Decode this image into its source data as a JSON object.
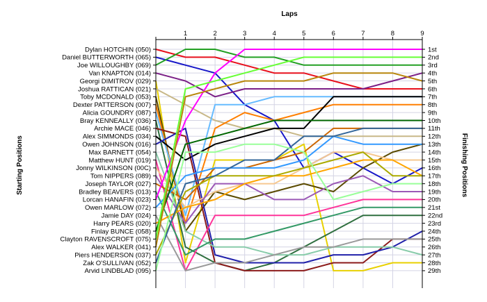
{
  "chart_data": {
    "type": "line",
    "title": "",
    "xlabel": "Laps",
    "ylabel_left": "Starting Positions",
    "ylabel_right": "Finishing Positions",
    "x": [
      0,
      1,
      2,
      3,
      4,
      5,
      6,
      7,
      8,
      9
    ],
    "x_tick_labels": [
      "1",
      "2",
      "3",
      "4",
      "5",
      "6",
      "7",
      "8",
      "9"
    ],
    "y_range": [
      1,
      29
    ],
    "grid": true,
    "left_labels": [
      "Dylan HOTCHIN (050)",
      "Daniel BUTTERWORTH (065)",
      "Joe WILLOUGHBY (069)",
      "Van KNAPTON (014)",
      "Georgi DIMITROV (029)",
      "Joshua RATTICAN (021)",
      "Toby MCDONALD (053)",
      "Dexter PATTERSON (007)",
      "Alicia GOUNDRY (087)",
      "Bray KENNEALLY (036)",
      "Archie MACE (046)",
      "Alex SIMMONDS (034)",
      "Owen JOHNSON (016)",
      "Max BARNETT (054)",
      "Matthew HUNT (019)",
      "Jonny WILKINSON (00C)",
      "Tom NIPPERS (089)",
      "Joseph TAYLOR (027)",
      "Bradley BEAVERS (013)",
      "Lorcan HANAFIN (023)",
      "Owen MARLOW (072)",
      "Jamie DAY (024)",
      "Harry PEARS (020)",
      "Finlay BUNCE (058)",
      "Clayton RAVENSCROFT (075)",
      "Alex WALKER (041)",
      "Piers HENDERSON (037)",
      "Zak O'SULLIVAN (052)",
      "Arvid LINDBLAD (095)"
    ],
    "right_labels": [
      "1st",
      "2nd",
      "3rd",
      "4th",
      "5th",
      "6th",
      "7th",
      "8th",
      "9th",
      "10th",
      "11th",
      "12th",
      "13th",
      "14th",
      "15th",
      "16th",
      "17th",
      "18th",
      "19th",
      "20th",
      "21st",
      "22nd",
      "23rd",
      "24th",
      "25th",
      "26th",
      "27th",
      "28th",
      "29th"
    ],
    "series": [
      {
        "color": "#e8101c",
        "values": [
          1,
          2,
          2,
          3,
          4,
          4,
          5,
          6,
          6,
          6
        ]
      },
      {
        "color": "#1717c8",
        "values": [
          2,
          3,
          4,
          8,
          10,
          16,
          14,
          16,
          18,
          16
        ]
      },
      {
        "color": "#23a023",
        "values": [
          3,
          1,
          1,
          2,
          2,
          3,
          3,
          3,
          3,
          3
        ]
      },
      {
        "color": "#7b1f86",
        "values": [
          4,
          5,
          7,
          6,
          6,
          6,
          6,
          6,
          5,
          4
        ]
      },
      {
        "color": "#e8d000",
        "values": [
          5,
          28,
          15,
          15,
          15,
          13,
          29,
          29,
          28,
          28
        ]
      },
      {
        "color": "#c8b888",
        "values": [
          6,
          8,
          10,
          11,
          11,
          12,
          12,
          12,
          12,
          12
        ]
      },
      {
        "color": "#5a4a00",
        "values": [
          7,
          24,
          19,
          20,
          19,
          18,
          19,
          16,
          14,
          13
        ]
      },
      {
        "color": "#ff7f00",
        "values": [
          8,
          23,
          11,
          9,
          10,
          9,
          8,
          8,
          8,
          8
        ]
      },
      {
        "color": "#66bbff",
        "values": [
          9,
          22,
          8,
          8,
          7,
          7,
          7,
          7,
          7,
          7
        ]
      },
      {
        "color": "#2f6f3f",
        "values": [
          10,
          26,
          28,
          29,
          28,
          26,
          24,
          22,
          22,
          22
        ]
      },
      {
        "color": "#8b1a1a",
        "values": [
          11,
          12,
          28,
          29,
          29,
          29,
          28,
          28,
          25,
          25
        ]
      },
      {
        "color": "#000000",
        "values": [
          12,
          15,
          13,
          12,
          11,
          11,
          7,
          7,
          7,
          7
        ]
      },
      {
        "color": "#2020aa",
        "values": [
          13,
          11,
          27,
          28,
          28,
          28,
          27,
          27,
          26,
          24
        ]
      },
      {
        "color": "#88ccaa",
        "values": [
          14,
          24,
          26,
          26,
          27,
          27,
          26,
          26,
          26,
          27
        ]
      },
      {
        "color": "#ff3399",
        "values": [
          15,
          29,
          22,
          22,
          22,
          22,
          21,
          20,
          20,
          20
        ]
      },
      {
        "color": "#f6c890",
        "values": [
          16,
          21,
          19,
          18,
          18,
          16,
          14,
          14,
          15,
          15
        ]
      },
      {
        "color": "#9b59b6",
        "values": [
          17,
          23,
          18,
          18,
          20,
          20,
          18,
          17,
          19,
          19
        ]
      },
      {
        "color": "#cc6600",
        "values": [
          18,
          20,
          16,
          16,
          15,
          14,
          11,
          11,
          11,
          11
        ]
      },
      {
        "color": "#339966",
        "values": [
          19,
          27,
          25,
          25,
          24,
          23,
          22,
          21,
          21,
          21
        ]
      },
      {
        "color": "#ff00ff",
        "values": [
          20,
          10,
          4,
          1,
          1,
          1,
          1,
          1,
          1,
          1
        ]
      },
      {
        "color": "#3399ff",
        "values": [
          21,
          17,
          16,
          16,
          16,
          15,
          12,
          13,
          13,
          13
        ]
      },
      {
        "color": "#999999",
        "values": [
          22,
          29,
          28,
          28,
          27,
          26,
          26,
          25,
          25,
          25
        ]
      },
      {
        "color": "#ffa500",
        "values": [
          23,
          21,
          20,
          18,
          17,
          17,
          16,
          15,
          15,
          17
        ]
      },
      {
        "color": "#006600",
        "values": [
          24,
          13,
          12,
          11,
          10,
          10,
          10,
          10,
          10,
          10
        ]
      },
      {
        "color": "#66ff33",
        "values": [
          25,
          6,
          5,
          4,
          3,
          2,
          2,
          2,
          2,
          2
        ]
      },
      {
        "color": "#b8860b",
        "values": [
          26,
          7,
          6,
          5,
          5,
          5,
          4,
          4,
          4,
          5
        ]
      },
      {
        "color": "#aaaa00",
        "values": [
          27,
          19,
          17,
          17,
          17,
          16,
          15,
          14,
          17,
          17
        ]
      },
      {
        "color": "#336699",
        "values": [
          28,
          18,
          17,
          15,
          15,
          12,
          12,
          11,
          11,
          11
        ]
      },
      {
        "color": "#99ff99",
        "values": [
          29,
          14,
          14,
          13,
          13,
          14,
          20,
          19,
          18,
          18
        ]
      }
    ]
  }
}
